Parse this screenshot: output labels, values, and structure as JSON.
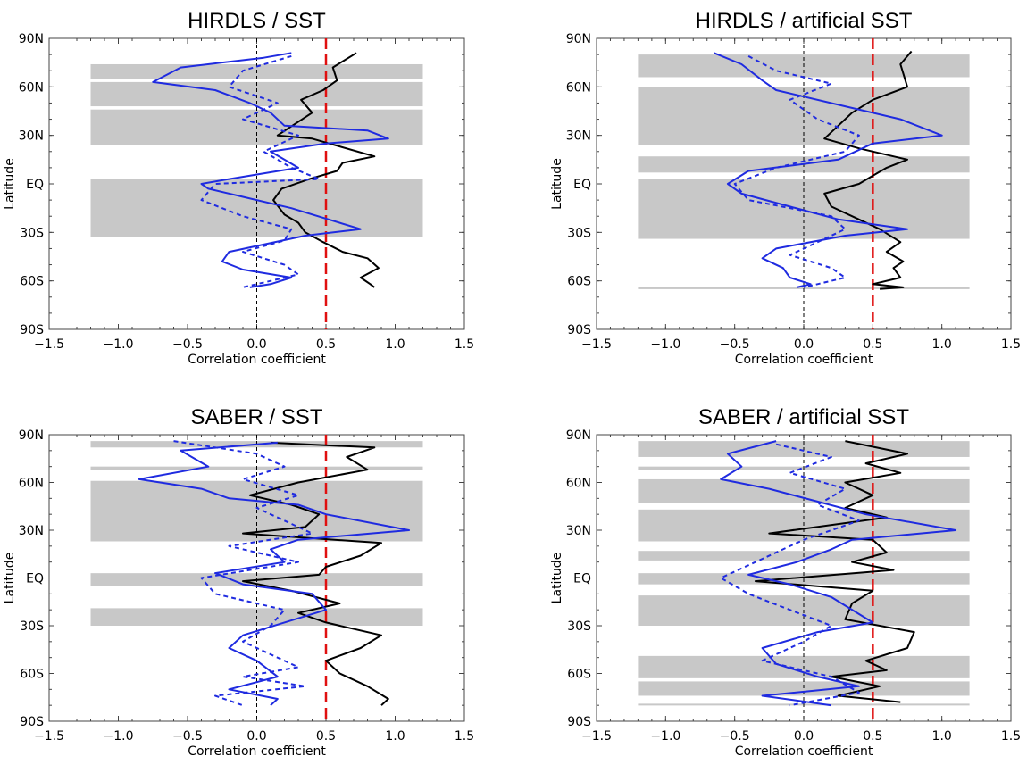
{
  "colors": {
    "shade": "#c8c8c8",
    "black_series": "#000000",
    "blue_series": "#1f2be0",
    "reference_line": "#e01010",
    "zero_line": "#000000"
  },
  "chart_data": [
    {
      "title": "HIRDLS / SST",
      "type": "line",
      "xlabel": "Correlation coefficient",
      "ylabel": "Latitude",
      "xlim": [
        -1.5,
        1.5
      ],
      "ylim": [
        -90,
        90
      ],
      "xticks": [
        "−1.5",
        "−1.0",
        "−0.5",
        "0.0",
        "0.5",
        "1.0",
        "1.5"
      ],
      "yticks": [
        "90S",
        "60S",
        "30S",
        "EQ",
        "30N",
        "60N",
        "90N"
      ],
      "reference_x": 0.5,
      "shaded_lat_bands": [
        [
          65,
          74
        ],
        [
          48,
          63
        ],
        [
          24,
          46
        ],
        [
          -33,
          3
        ]
      ],
      "series": [
        {
          "style": "solid-black",
          "x": [
            0.72,
            0.55,
            0.58,
            0.48,
            0.32,
            0.4,
            0.15,
            0.4,
            0.85,
            0.62,
            0.58,
            0.38,
            0.18,
            0.12,
            0.2,
            0.3,
            0.35,
            0.48,
            0.62,
            0.8,
            0.88,
            0.75,
            0.82,
            0.85
          ],
          "y": [
            81,
            72,
            64,
            58,
            52,
            44,
            30,
            28,
            17,
            13,
            8,
            3,
            -3,
            -10,
            -19,
            -24,
            -30,
            -36,
            -42,
            -46,
            -52,
            -58,
            -62,
            -64
          ]
        },
        {
          "style": "solid-blue",
          "x": [
            0.25,
            0.05,
            -0.55,
            -0.75,
            -0.3,
            -0.05,
            0.1,
            0.2,
            0.8,
            0.95,
            0.5,
            0.1,
            0.3,
            -0.2,
            -0.4,
            -0.35,
            -0.1,
            0.25,
            0.75,
            0.35,
            -0.2,
            -0.25,
            -0.1,
            0.25,
            0.1,
            -0.05
          ],
          "y": [
            81,
            78,
            72,
            63,
            58,
            50,
            44,
            36,
            33,
            28,
            25,
            20,
            10,
            3,
            0,
            -3,
            -8,
            -15,
            -28,
            -32,
            -42,
            -48,
            -53,
            -58,
            -62,
            -64
          ]
        },
        {
          "style": "dashed-blue",
          "x": [
            0.25,
            -0.1,
            -0.2,
            0.15,
            -0.1,
            0.3,
            0.05,
            0.25,
            0.45,
            -0.3,
            -0.4,
            -0.1,
            0.25,
            0.2,
            -0.1,
            0.2,
            0.3,
            0.1,
            -0.1
          ],
          "y": [
            79,
            70,
            60,
            50,
            40,
            30,
            20,
            10,
            3,
            0,
            -10,
            -20,
            -28,
            -35,
            -42,
            -50,
            -56,
            -60,
            -64
          ]
        }
      ]
    },
    {
      "title": "HIRDLS / artificial SST",
      "type": "line",
      "xlabel": "Correlation coefficient",
      "ylabel": "Latitude",
      "xlim": [
        -1.5,
        1.5
      ],
      "ylim": [
        -90,
        90
      ],
      "xticks": [
        "−1.5",
        "−1.0",
        "−0.5",
        "0.0",
        "0.5",
        "1.0",
        "1.5"
      ],
      "yticks": [
        "90S",
        "60S",
        "30S",
        "EQ",
        "30N",
        "60N",
        "90N"
      ],
      "reference_x": 0.5,
      "shaded_lat_bands": [
        [
          66,
          80
        ],
        [
          24,
          60
        ],
        [
          7,
          17
        ],
        [
          -34,
          3
        ],
        [
          -65,
          -64
        ]
      ],
      "series": [
        {
          "style": "solid-black",
          "x": [
            0.78,
            0.7,
            0.75,
            0.5,
            0.35,
            0.25,
            0.15,
            0.4,
            0.75,
            0.6,
            0.5,
            0.4,
            0.15,
            0.2,
            0.4,
            0.55,
            0.7,
            0.6,
            0.72,
            0.65,
            0.7,
            0.5,
            0.72,
            0.55
          ],
          "y": [
            82,
            74,
            60,
            52,
            44,
            36,
            28,
            22,
            15,
            10,
            5,
            0,
            -6,
            -14,
            -22,
            -28,
            -36,
            -42,
            -48,
            -52,
            -58,
            -62,
            -64,
            -65
          ]
        },
        {
          "style": "solid-blue",
          "x": [
            -0.65,
            -0.45,
            -0.3,
            -0.2,
            0.3,
            0.7,
            1.0,
            0.5,
            0.25,
            -0.4,
            -0.55,
            -0.45,
            -0.1,
            0.25,
            0.75,
            0.3,
            -0.2,
            -0.3,
            -0.15,
            -0.1,
            0.05,
            -0.05
          ],
          "y": [
            81,
            74,
            64,
            58,
            48,
            40,
            30,
            25,
            15,
            8,
            0,
            -6,
            -14,
            -22,
            -28,
            -32,
            -40,
            -46,
            -52,
            -58,
            -62,
            -64
          ]
        },
        {
          "style": "dashed-blue",
          "x": [
            -0.4,
            -0.2,
            0.2,
            -0.1,
            0.1,
            0.4,
            0.3,
            -0.2,
            -0.5,
            -0.4,
            0.2,
            0.3,
            0.1,
            -0.1,
            0.2,
            0.3,
            0.1,
            0.0
          ],
          "y": [
            79,
            70,
            62,
            52,
            40,
            30,
            20,
            10,
            0,
            -10,
            -20,
            -28,
            -36,
            -44,
            -52,
            -58,
            -62,
            -64
          ]
        }
      ]
    },
    {
      "title": "SABER / SST",
      "type": "line",
      "xlabel": "Correlation coefficient",
      "ylabel": "Latitude",
      "xlim": [
        -1.5,
        1.5
      ],
      "ylim": [
        -90,
        90
      ],
      "xticks": [
        "−1.5",
        "−1.0",
        "−0.5",
        "0.0",
        "0.5",
        "1.0",
        "1.5"
      ],
      "yticks": [
        "90S",
        "60S",
        "30S",
        "EQ",
        "30N",
        "60N",
        "90N"
      ],
      "reference_x": 0.5,
      "shaded_lat_bands": [
        [
          82,
          86
        ],
        [
          68,
          70
        ],
        [
          23,
          61
        ],
        [
          -5,
          3
        ],
        [
          -30,
          -19
        ]
      ],
      "series": [
        {
          "style": "solid-black",
          "x": [
            0.1,
            0.85,
            0.65,
            0.8,
            0.3,
            -0.05,
            0.25,
            0.45,
            0.35,
            -0.1,
            0.9,
            0.75,
            0.5,
            0.45,
            -0.1,
            0.25,
            0.6,
            0.3,
            0.5,
            0.9,
            0.75,
            0.5,
            0.6,
            0.8,
            0.95,
            0.9
          ],
          "y": [
            85,
            82,
            76,
            68,
            60,
            52,
            46,
            40,
            32,
            28,
            22,
            14,
            7,
            2,
            -2,
            -8,
            -16,
            -22,
            -28,
            -36,
            -44,
            -52,
            -60,
            -68,
            -76,
            -80
          ]
        },
        {
          "style": "solid-blue",
          "x": [
            0.15,
            -0.55,
            -0.35,
            -0.85,
            -0.4,
            -0.2,
            0.3,
            0.5,
            1.1,
            0.3,
            0.1,
            0.2,
            -0.3,
            -0.1,
            0.4,
            0.5,
            0.2,
            -0.1,
            -0.2,
            0.0,
            0.15,
            -0.2,
            0.15,
            0.1
          ],
          "y": [
            85,
            80,
            70,
            62,
            56,
            50,
            46,
            40,
            30,
            24,
            18,
            10,
            3,
            -4,
            -10,
            -20,
            -28,
            -36,
            -44,
            -52,
            -62,
            -70,
            -76,
            -80
          ]
        },
        {
          "style": "dashed-blue",
          "x": [
            -0.6,
            0.0,
            0.2,
            -0.1,
            0.3,
            0.0,
            0.2,
            0.4,
            -0.2,
            0.3,
            -0.4,
            -0.3,
            0.2,
            0.1,
            -0.1,
            0.1,
            0.3,
            -0.1,
            0.35,
            -0.3,
            -0.1
          ],
          "y": [
            86,
            78,
            70,
            62,
            52,
            44,
            36,
            28,
            20,
            10,
            0,
            -10,
            -20,
            -30,
            -40,
            -48,
            -56,
            -62,
            -68,
            -74,
            -80
          ]
        }
      ]
    },
    {
      "title": "SABER / artificial SST",
      "type": "line",
      "xlabel": "Correlation coefficient",
      "ylabel": "Latitude",
      "xlim": [
        -1.5,
        1.5
      ],
      "ylim": [
        -90,
        90
      ],
      "xticks": [
        "−1.5",
        "−1.0",
        "−0.5",
        "0.0",
        "0.5",
        "1.0",
        "1.5"
      ],
      "yticks": [
        "90S",
        "60S",
        "30S",
        "EQ",
        "30N",
        "60N",
        "90N"
      ],
      "reference_x": 0.5,
      "shaded_lat_bands": [
        [
          76,
          86
        ],
        [
          68,
          70
        ],
        [
          47,
          62
        ],
        [
          23,
          43
        ],
        [
          11,
          17
        ],
        [
          -4,
          3
        ],
        [
          -30,
          -11
        ],
        [
          -63,
          -49
        ],
        [
          -74,
          -65
        ],
        [
          -80,
          -79
        ]
      ],
      "series": [
        {
          "style": "solid-black",
          "x": [
            0.3,
            0.75,
            0.45,
            0.7,
            0.3,
            0.5,
            0.3,
            0.6,
            -0.25,
            0.5,
            0.6,
            0.35,
            0.65,
            -0.35,
            0.5,
            0.35,
            0.3,
            0.8,
            0.75,
            0.45,
            0.6,
            0.2,
            0.55,
            0.25,
            0.7
          ],
          "y": [
            86,
            78,
            72,
            66,
            60,
            52,
            44,
            38,
            28,
            24,
            16,
            10,
            5,
            -2,
            -8,
            -16,
            -26,
            -34,
            -44,
            -52,
            -58,
            -62,
            -68,
            -74,
            -78
          ]
        },
        {
          "style": "solid-blue",
          "x": [
            -0.2,
            -0.55,
            -0.45,
            -0.6,
            -0.25,
            0.1,
            0.45,
            1.1,
            0.35,
            0.2,
            -0.05,
            -0.4,
            -0.1,
            0.2,
            0.5,
            0.1,
            -0.3,
            -0.2,
            0.1,
            0.4,
            -0.3,
            0.2
          ],
          "y": [
            86,
            78,
            70,
            62,
            56,
            48,
            40,
            30,
            24,
            18,
            10,
            2,
            -4,
            -12,
            -28,
            -34,
            -44,
            -54,
            -62,
            -68,
            -74,
            -80
          ]
        },
        {
          "style": "dashed-blue",
          "x": [
            -0.2,
            0.2,
            -0.1,
            0.3,
            0.1,
            0.4,
            0.0,
            -0.3,
            -0.6,
            -0.4,
            -0.1,
            0.2,
            0.0,
            -0.3,
            0.2,
            0.4,
            -0.1
          ],
          "y": [
            84,
            76,
            66,
            56,
            46,
            36,
            24,
            12,
            0,
            -10,
            -20,
            -30,
            -40,
            -52,
            -62,
            -72,
            -80
          ]
        }
      ]
    }
  ]
}
